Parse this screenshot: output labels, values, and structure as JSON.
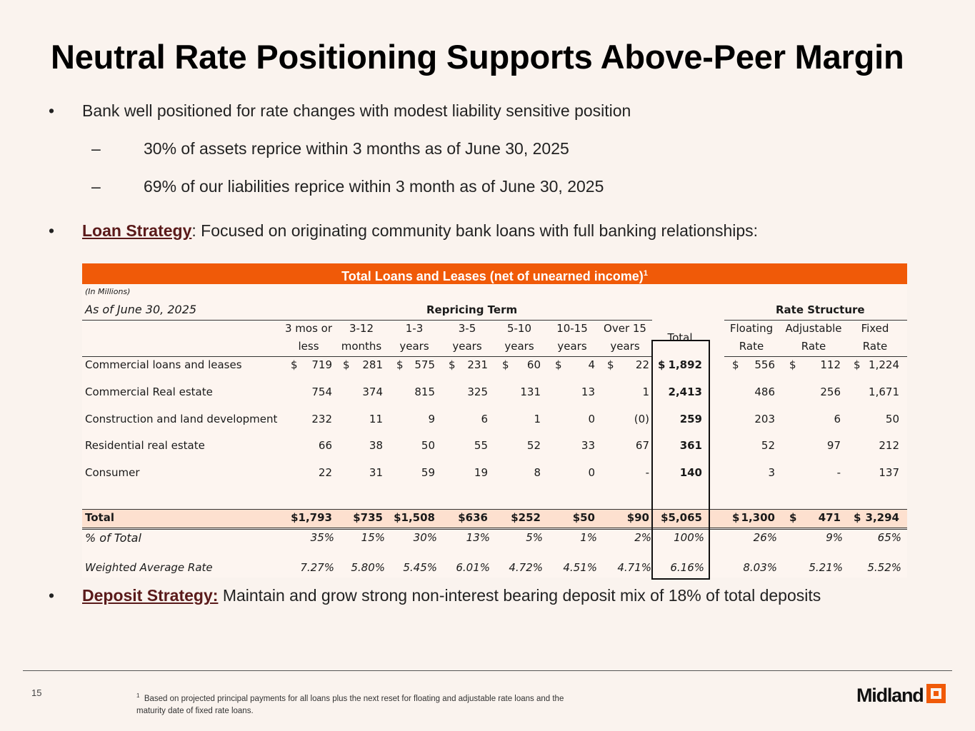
{
  "title": "Neutral Rate Positioning Supports Above-Peer Margin",
  "bullets": {
    "b1": "Bank well positioned for rate changes with modest liability sensitive position",
    "s1": "30% of assets reprice within 3 months as of June 30, 2025",
    "s2": "69% of our liabilities reprice within 3 month as of June 30, 2025",
    "b2_label": "Loan Strategy",
    "b2_text": ": Focused on originating community bank loans with full banking relationships:",
    "b3_label": "Deposit Strategy:",
    "b3_text": " Maintain and grow strong non-interest bearing deposit mix of 18% of total deposits",
    "bullet_char": "•",
    "dash_char": "–"
  },
  "table": {
    "header": "Total Loans and Leases (net of unearned income)",
    "header_sup": "1",
    "units": "(In Millions)",
    "as_of": "As of June 30, 2025",
    "group_repricing": "Repricing Term",
    "group_rate": "Rate Structure",
    "cols": [
      {
        "l1": "3 mos or",
        "l2": "less"
      },
      {
        "l1": "3-12",
        "l2": "months"
      },
      {
        "l1": "1-3",
        "l2": "years"
      },
      {
        "l1": "3-5",
        "l2": "years"
      },
      {
        "l1": "5-10",
        "l2": "years"
      },
      {
        "l1": "10-15",
        "l2": "years"
      },
      {
        "l1": "Over 15",
        "l2": "years"
      },
      {
        "l1": "Total",
        "l2": ""
      },
      {
        "l1": "Floating",
        "l2": "Rate"
      },
      {
        "l1": "Adjustable",
        "l2": "Rate"
      },
      {
        "l1": "Fixed",
        "l2": "Rate"
      }
    ],
    "rows": [
      {
        "label": "Commercial loans and leases",
        "dollar": true,
        "vals": [
          "719",
          "281",
          "575",
          "231",
          "60",
          "4",
          "22",
          "1,892",
          "556",
          "112",
          "1,224"
        ]
      },
      {
        "label": "Commercial Real estate",
        "dollar": false,
        "vals": [
          "754",
          "374",
          "815",
          "325",
          "131",
          "13",
          "1",
          "2,413",
          "486",
          "256",
          "1,671"
        ]
      },
      {
        "label": "Construction and land development",
        "dollar": false,
        "vals": [
          "232",
          "11",
          "9",
          "6",
          "1",
          "0",
          "(0)",
          "259",
          "203",
          "6",
          "50"
        ]
      },
      {
        "label": "Residential real estate",
        "dollar": false,
        "vals": [
          "66",
          "38",
          "50",
          "55",
          "52",
          "33",
          "67",
          "361",
          "52",
          "97",
          "212"
        ]
      },
      {
        "label": "Consumer",
        "dollar": false,
        "vals": [
          "22",
          "31",
          "59",
          "19",
          "8",
          "0",
          "-",
          "140",
          "3",
          "-",
          "137"
        ]
      }
    ],
    "total_row": {
      "label": "Total",
      "vals": [
        "$1,793",
        "$735",
        "$1,508",
        "$636",
        "$252",
        "$50",
        "$90",
        "$5,065",
        "1,300",
        "471",
        "3,294"
      ]
    },
    "pct_row": {
      "label": "% of Total",
      "vals": [
        "35%",
        "15%",
        "30%",
        "13%",
        "5%",
        "1%",
        "2%",
        "100%",
        "26%",
        "9%",
        "65%"
      ]
    },
    "war_row": {
      "label": "Weighted Average Rate",
      "vals": [
        "7.27%",
        "5.80%",
        "5.45%",
        "6.01%",
        "4.72%",
        "4.51%",
        "4.71%",
        "6.16%",
        "8.03%",
        "5.21%",
        "5.52%"
      ]
    },
    "dollar_sign": "$"
  },
  "footer": {
    "page": "15",
    "note_sup": "1",
    "note": "Based on projected principal payments for all loans plus the next reset for floating and adjustable rate loans and the maturity date of fixed rate loans.",
    "logo": "Midland"
  }
}
